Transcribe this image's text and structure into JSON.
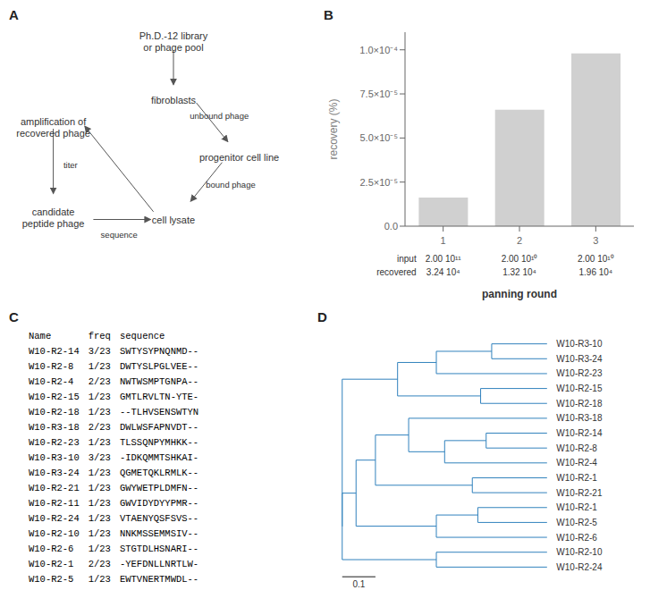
{
  "chart_data": [
    {
      "type": "diagram",
      "title": "A",
      "annotations": [
        "Ph.D.-12 library\nor phage pool",
        "fibroblasts",
        "progenitor cell line",
        "cell lysate",
        "amplification of\nrecovered phage",
        "candidate\npeptide phage",
        "unbound phage",
        "bound phage",
        "titer",
        "sequence"
      ]
    },
    {
      "type": "bar",
      "title": "B",
      "categories": [
        "1",
        "2",
        "3"
      ],
      "values": [
        1.62e-05,
        6.6e-05,
        9.8e-05
      ],
      "color": "#d0d0d0",
      "ylim": [
        0,
        0.00011
      ],
      "yticks": [
        {
          "value": 0.0,
          "label": "0.0"
        },
        {
          "value": 2.5e-05,
          "label": "2.5×10⁻⁵"
        },
        {
          "value": 5e-05,
          "label": "5.0×10⁻⁵"
        },
        {
          "value": 7.5e-05,
          "label": "7.5×10⁻⁵"
        },
        {
          "value": 0.0001,
          "label": "1.0×10⁻⁴"
        }
      ],
      "ylabel": "recovery (%)",
      "xlabel": "panning round",
      "grid": false,
      "table": [
        {
          "name": "input",
          "values": [
            "2.00 10¹¹",
            "2.00 10¹⁰",
            "2.00 10¹⁰"
          ]
        },
        {
          "name": "recovered",
          "values": [
            "3.24 10⁴",
            "1.32 10⁴",
            "1.96 10⁴"
          ]
        }
      ]
    },
    {
      "type": "table",
      "title": "C",
      "columns": [
        "Name",
        "freq",
        "sequence"
      ],
      "rows": [
        [
          "W10-R2-14",
          "3/23",
          "SWTYSYPNQNMD--"
        ],
        [
          "W10-R2-8",
          "1/23",
          "DWTYSLPGLVEE--"
        ],
        [
          "W10-R2-4",
          "2/23",
          "NWTWSMPTGNPA--"
        ],
        [
          "W10-R2-15",
          "1/23",
          "GMTLRVLTN-YTE-"
        ],
        [
          "W10-R2-18",
          "1/23",
          "--TLHVSENSWTYN"
        ],
        [
          "W10-R3-18",
          "2/23",
          "DWLWSFAPNVDT--"
        ],
        [
          "W10-R2-23",
          "1/23",
          "TLSSQNPYMHKK--"
        ],
        [
          "W10-R3-10",
          "3/23",
          "-IDKQMMTSHKAI-"
        ],
        [
          "W10-R3-24",
          "1/23",
          "QGMETQKLRMLK--"
        ],
        [
          "W10-R2-21",
          "1/23",
          "GWYWETPLDMFN--"
        ],
        [
          "W10-R2-11",
          "1/23",
          "GWVIDYDYYPMR--"
        ],
        [
          "W10-R2-24",
          "1/23",
          "VTAENYQSFSVS--"
        ],
        [
          "W10-R2-10",
          "1/23",
          "NNKMSSEMMSIV--"
        ],
        [
          "W10-R2-6",
          "1/23",
          "STGTDLHSNARI--"
        ],
        [
          "W10-R2-1",
          "2/23",
          "-YEFDNLLNRTLW-"
        ],
        [
          "W10-R2-5",
          "1/23",
          "EWTVNERTMWDL--"
        ]
      ]
    },
    {
      "type": "dendrogram",
      "title": "D",
      "xlim": [
        0,
        1.15
      ],
      "ylim": [
        0,
        17
      ],
      "tick_labels": false,
      "leaf_x": 0.82,
      "tree": {
        "x": 0.08,
        "children": [
          {
            "x": 0.28,
            "children": [
              {
                "x": 0.42,
                "children": [
                  {
                    "x": 0.62,
                    "children": [
                      "W10-R3-10",
                      "W10-R3-24"
                    ]
                  },
                  "W10-R2-23"
                ]
              },
              {
                "x": 0.58,
                "children": [
                  "W10-R2-15",
                  "W10-R2-18"
                ]
              }
            ]
          },
          {
            "x": 0.08,
            "children": [
              {
                "x": 0.13,
                "children": [
                  {
                    "x": 0.2,
                    "children": [
                      {
                        "x": 0.32,
                        "children": [
                          "W10-R3-18",
                          {
                            "x": 0.45,
                            "children": [
                              {
                                "x": 0.6,
                                "children": [
                                  "W10-R2-14",
                                  "W10-R2-8"
                                ]
                              },
                              "W10-R2-4"
                            ]
                          }
                        ]
                      },
                      {
                        "x": 0.55,
                        "children": [
                          "W10-R2-1",
                          "W10-R2-21"
                        ]
                      }
                    ]
                  },
                  {
                    "x": 0.42,
                    "children": [
                      {
                        "x": 0.57,
                        "children": [
                          "W10-R2-1",
                          "W10-R2-5"
                        ]
                      },
                      "W10-R2-6"
                    ]
                  }
                ]
              },
              {
                "x": 0.42,
                "children": [
                  "W10-R2-10",
                  "W10-R2-24"
                ]
              }
            ]
          }
        ]
      },
      "scale_bar": {
        "value": 0.12,
        "label": "0.1"
      }
    }
  ]
}
